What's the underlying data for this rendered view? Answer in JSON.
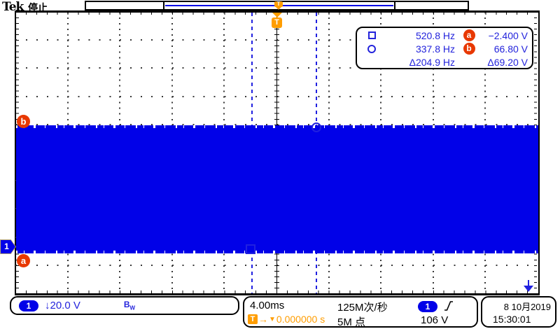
{
  "header": {
    "brand": "Tek",
    "status": "停止"
  },
  "record_bar": {
    "trigger_label": "T"
  },
  "cursor_box": {
    "row1": {
      "freq": "520.8 Hz",
      "badge": "a",
      "value": "−2.400 V"
    },
    "row2": {
      "freq": "337.8 Hz",
      "badge": "b",
      "value": "66.80 V"
    },
    "row3": {
      "freq": "Δ204.9 Hz",
      "value": "Δ69.20 V"
    }
  },
  "graticule_markers": {
    "cursor_b_label": "b",
    "cursor_a_label": "a",
    "channel_label": "1",
    "trigger_label": "T"
  },
  "channel_readout": {
    "badge": "1",
    "invert_scale": "↓20.0 V",
    "bw_b": "B",
    "bw_w": "W"
  },
  "horizontal_readout": {
    "timebase": "4.00ms",
    "sample_rate": "125M次/秒",
    "record_length": "5M 点",
    "trig_t": "T",
    "trig_arrow": "→",
    "trig_marker": "▼",
    "trig_value": "0.000000 s"
  },
  "trigger_readout": {
    "badge": "1",
    "level": "106 V"
  },
  "datetime": {
    "date": "8 10月2019",
    "time": "15:30:01"
  },
  "colors": {
    "ch1_blue": "#0101e8",
    "text_blue": "#2323dc",
    "trigger_orange": "#ff9d00",
    "marker_red": "#e83800"
  }
}
